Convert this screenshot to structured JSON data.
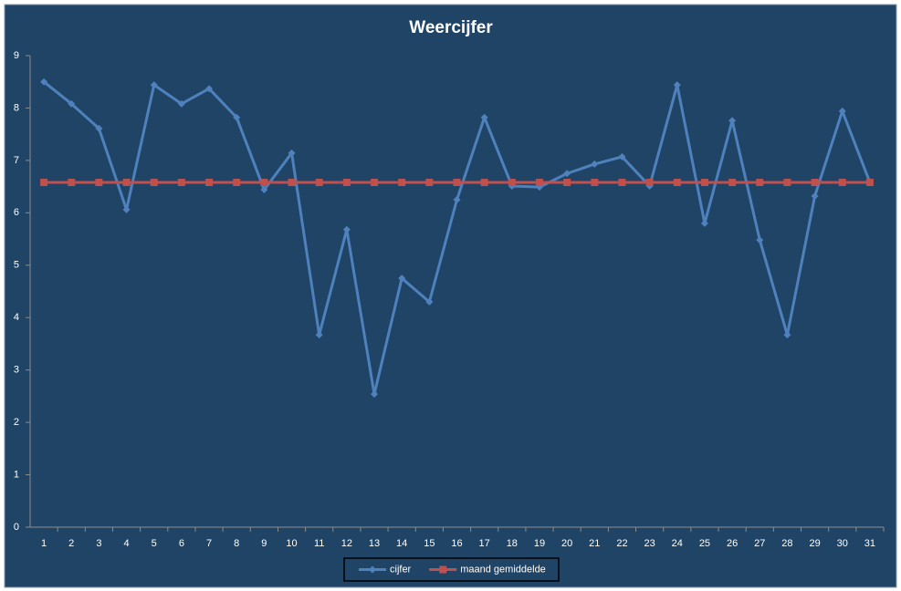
{
  "chart_data": {
    "type": "line",
    "title": "Weercijfer",
    "categories": [
      "1",
      "2",
      "3",
      "4",
      "5",
      "6",
      "7",
      "8",
      "9",
      "10",
      "11",
      "12",
      "13",
      "14",
      "15",
      "16",
      "17",
      "18",
      "19",
      "20",
      "21",
      "22",
      "23",
      "24",
      "25",
      "26",
      "27",
      "28",
      "29",
      "30",
      "31"
    ],
    "series": [
      {
        "name": "cijfer",
        "color": "#4f81bd",
        "marker": "diamond",
        "values": [
          8.5,
          8.08,
          7.61,
          6.06,
          8.44,
          8.08,
          8.37,
          7.82,
          6.44,
          7.14,
          3.67,
          5.68,
          2.54,
          4.75,
          4.3,
          6.25,
          7.82,
          6.51,
          6.49,
          6.75,
          6.93,
          7.07,
          6.51,
          8.44,
          5.8,
          7.76,
          5.48,
          3.67,
          6.32,
          7.94,
          6.58
        ]
      },
      {
        "name": "maand gemiddelde",
        "color": "#c0504d",
        "marker": "square",
        "values": [
          6.58,
          6.58,
          6.58,
          6.58,
          6.58,
          6.58,
          6.58,
          6.58,
          6.58,
          6.58,
          6.58,
          6.58,
          6.58,
          6.58,
          6.58,
          6.58,
          6.58,
          6.58,
          6.58,
          6.58,
          6.58,
          6.58,
          6.58,
          6.58,
          6.58,
          6.58,
          6.58,
          6.58,
          6.58,
          6.58,
          6.58
        ]
      }
    ],
    "ylim": [
      0,
      9
    ],
    "yticks": [
      0,
      1,
      2,
      3,
      4,
      5,
      6,
      7,
      8,
      9
    ],
    "grid": false,
    "legend": "bottom"
  }
}
